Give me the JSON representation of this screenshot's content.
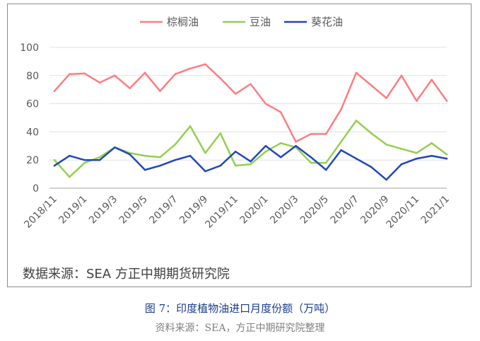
{
  "chart_data": {
    "type": "line",
    "title": "",
    "xlabel": "",
    "ylabel": "",
    "ylim": [
      0,
      100
    ],
    "yticks": [
      0,
      20,
      40,
      60,
      80,
      100
    ],
    "grid": true,
    "legend_position": "top",
    "x": [
      "2018/11",
      "2018/12",
      "2019/1",
      "2019/2",
      "2019/3",
      "2019/4",
      "2019/5",
      "2019/6",
      "2019/7",
      "2019/8",
      "2019/9",
      "2019/10",
      "2019/11",
      "2019/12",
      "2020/1",
      "2020/2",
      "2020/3",
      "2020/4",
      "2020/5",
      "2020/6",
      "2020/7",
      "2020/8",
      "2020/9",
      "2020/10",
      "2020/11",
      "2020/12",
      "2021/1"
    ],
    "xtick_labels": [
      "2018/11",
      "2019/1",
      "2019/3",
      "2019/5",
      "2019/7",
      "2019/9",
      "2019/11",
      "2020/1",
      "2020/3",
      "2020/5",
      "2020/7",
      "2020/9",
      "2020/11",
      "2021/1"
    ],
    "series": [
      {
        "name": "棕榈油",
        "color": "#ff7c80",
        "values": [
          69,
          81,
          81.5,
          75,
          80,
          71,
          82,
          69,
          81,
          85,
          88,
          78,
          67,
          74,
          60,
          54,
          33,
          38.5,
          38.5,
          56,
          82,
          73,
          64,
          80,
          62,
          77,
          62
        ]
      },
      {
        "name": "豆油",
        "color": "#92d050",
        "values": [
          20,
          8,
          18,
          22,
          29,
          25,
          23,
          22,
          31,
          44,
          25,
          39,
          16,
          17,
          26,
          32,
          29,
          18,
          18,
          33,
          48,
          39,
          31,
          28,
          25,
          32,
          24
        ]
      },
      {
        "name": "葵花油",
        "color": "#2048b8",
        "values": [
          16,
          23,
          20,
          20,
          29,
          24,
          13,
          16,
          20,
          23,
          12,
          16,
          26,
          19,
          30,
          22,
          30,
          22,
          13,
          27,
          21,
          15,
          6,
          17,
          21,
          23,
          21
        ]
      }
    ]
  },
  "source_label": "数据来源：SEA 方正中期期货研究院",
  "caption": "图 7：印度植物油进口月度份额（万吨）",
  "subcaption": "资料来源：SEA，方正中期研究院整理"
}
